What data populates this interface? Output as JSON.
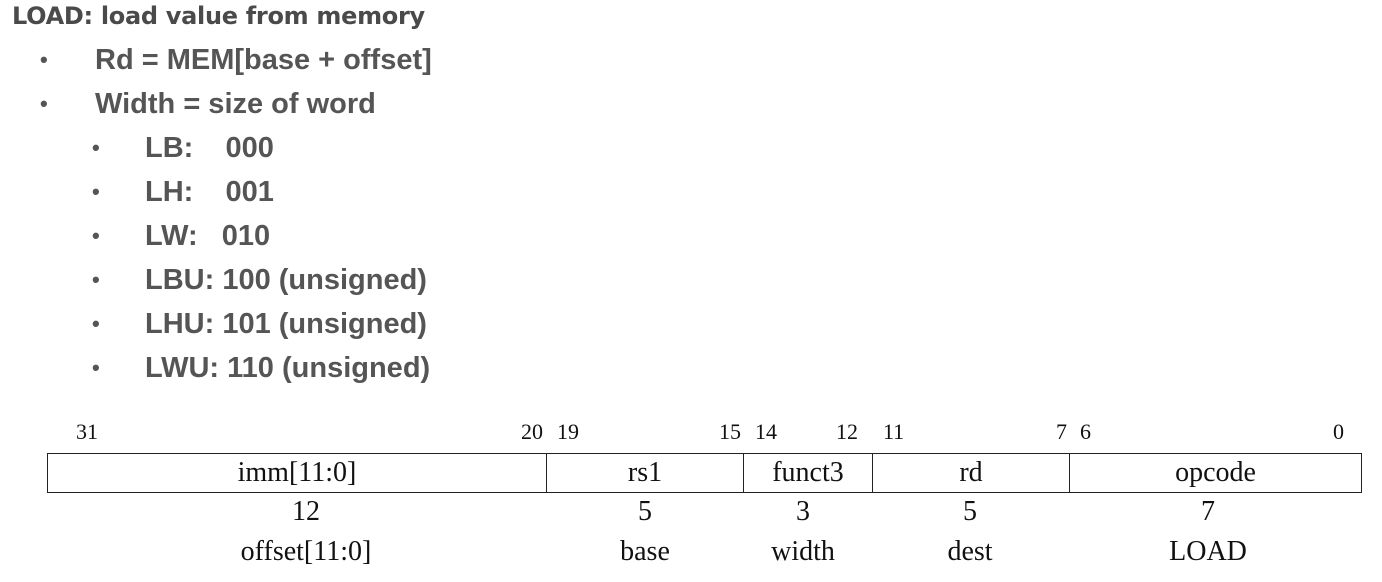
{
  "heading": "LOAD: load value from memory",
  "bullets": [
    {
      "text": "Rd = MEM[base + offset]",
      "level": 1
    },
    {
      "text": "Width = size of word",
      "level": 1
    },
    {
      "text": "LB:    000",
      "level": 2
    },
    {
      "text": "LH:    001",
      "level": 2
    },
    {
      "text": "LW:   010",
      "level": 2
    },
    {
      "text": "LBU: 100 (unsigned)",
      "level": 2
    },
    {
      "text": "LHU: 101 (unsigned)",
      "level": 2
    },
    {
      "text": "LWU: 110 (unsigned)",
      "level": 2
    }
  ],
  "bullet_symbol": "•",
  "instruction_format": {
    "fields": [
      {
        "name": "imm[11:0]",
        "hi_bit": "31",
        "lo_bit": "20",
        "width": "12",
        "desc": "offset[11:0]"
      },
      {
        "name": "rs1",
        "hi_bit": "19",
        "lo_bit": "15",
        "width": "5",
        "desc": "base"
      },
      {
        "name": "funct3",
        "hi_bit": "14",
        "lo_bit": "12",
        "width": "3",
        "desc": "width"
      },
      {
        "name": "rd",
        "hi_bit": "11",
        "lo_bit": "7",
        "width": "5",
        "desc": "dest"
      },
      {
        "name": "opcode",
        "hi_bit": "6",
        "lo_bit": "0",
        "width": "7",
        "desc": "LOAD"
      }
    ]
  }
}
